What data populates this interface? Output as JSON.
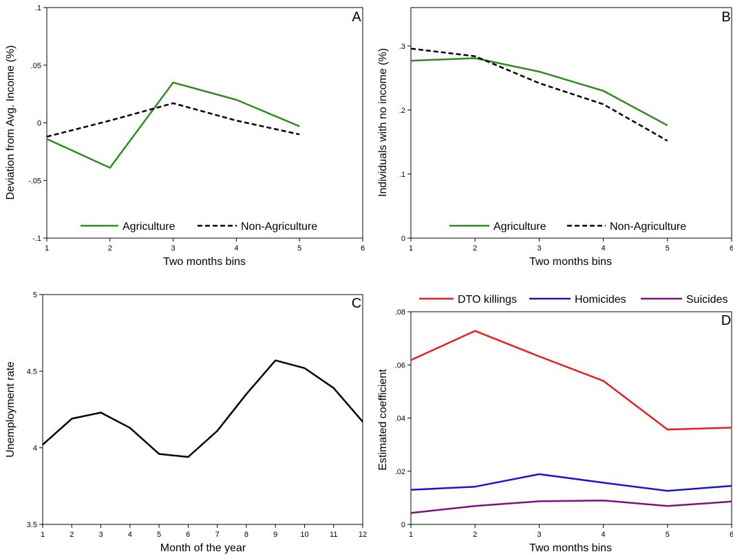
{
  "chart_data": [
    {
      "type": "line",
      "panel_label": "A",
      "xlabel": "Two months bins",
      "ylabel": "Deviation from Avg. Income (%)",
      "xlim": [
        1,
        6
      ],
      "ylim": [
        -0.1,
        0.1
      ],
      "x_ticks": [
        1,
        2,
        3,
        4,
        5,
        6
      ],
      "x_tick_labels": [
        "1",
        "2",
        "3",
        "4",
        "5",
        "6"
      ],
      "y_ticks": [
        -0.1,
        -0.05,
        0,
        0.05,
        0.1
      ],
      "y_tick_labels": [
        "-.1",
        "-.05",
        "0",
        ".05",
        ".1"
      ],
      "legend_position": "bottom-inside",
      "series": [
        {
          "name": "Agriculture",
          "color": "#2e8b22",
          "dash": "solid",
          "x": [
            1,
            2,
            3,
            4,
            5
          ],
          "values": [
            -0.014,
            -0.039,
            0.035,
            0.02,
            -0.003
          ]
        },
        {
          "name": "Non-Agriculture",
          "color": "#000000",
          "dash": "dashed",
          "x": [
            1,
            2,
            3,
            4,
            5
          ],
          "values": [
            -0.012,
            0.002,
            0.017,
            0.002,
            -0.01
          ]
        }
      ]
    },
    {
      "type": "line",
      "panel_label": "B",
      "xlabel": "Two months bins",
      "ylabel": "Individuals with no income (%)",
      "xlim": [
        1,
        6
      ],
      "ylim": [
        0,
        0.36
      ],
      "x_ticks": [
        1,
        2,
        3,
        4,
        5,
        6
      ],
      "x_tick_labels": [
        "1",
        "2",
        "3",
        "4",
        "5",
        "6"
      ],
      "y_ticks": [
        0,
        0.1,
        0.2,
        0.3
      ],
      "y_tick_labels": [
        "0",
        ".1",
        ".2",
        ".3"
      ],
      "legend_position": "bottom-inside",
      "series": [
        {
          "name": "Agriculture",
          "color": "#2e8b22",
          "dash": "solid",
          "x": [
            1,
            2,
            3,
            4,
            5
          ],
          "values": [
            0.277,
            0.281,
            0.26,
            0.23,
            0.176
          ]
        },
        {
          "name": "Non-Agriculture",
          "color": "#000000",
          "dash": "dashed",
          "x": [
            1,
            2,
            3,
            4,
            5
          ],
          "values": [
            0.296,
            0.284,
            0.242,
            0.209,
            0.152
          ]
        }
      ]
    },
    {
      "type": "line",
      "panel_label": "C",
      "xlabel": "Month of the year",
      "ylabel": "Unemployment rate",
      "xlim": [
        1,
        12
      ],
      "ylim": [
        3.5,
        5.0
      ],
      "x_ticks": [
        1,
        2,
        3,
        4,
        5,
        6,
        7,
        8,
        9,
        10,
        11,
        12
      ],
      "x_tick_labels": [
        "1",
        "2",
        "3",
        "4",
        "5",
        "6",
        "7",
        "8",
        "9",
        "10",
        "11",
        "12"
      ],
      "y_ticks": [
        3.5,
        4,
        4.5,
        5
      ],
      "y_tick_labels": [
        "3.5",
        "4",
        "4.5",
        "5"
      ],
      "series": [
        {
          "color": "#000000",
          "dash": "solid",
          "x": [
            1,
            2,
            3,
            4,
            5,
            6,
            7,
            8,
            9,
            10,
            11,
            12
          ],
          "values": [
            4.02,
            4.19,
            4.23,
            4.13,
            3.96,
            3.94,
            4.11,
            4.35,
            4.57,
            4.52,
            4.39,
            4.17
          ]
        }
      ]
    },
    {
      "type": "line",
      "panel_label": "D",
      "xlabel": "Two months bins",
      "ylabel": "Estimated coefficient",
      "xlim": [
        1,
        6
      ],
      "ylim": [
        0,
        0.08
      ],
      "x_ticks": [
        1,
        2,
        3,
        4,
        5,
        6
      ],
      "x_tick_labels": [
        "1",
        "2",
        "3",
        "4",
        "5",
        "6"
      ],
      "y_ticks": [
        0,
        0.02,
        0.04,
        0.06,
        0.08
      ],
      "y_tick_labels": [
        "0",
        ".02",
        ".04",
        ".06",
        ".08"
      ],
      "legend_position": "top-outside",
      "series": [
        {
          "name": "DTO killings",
          "color": "#ee1c1c",
          "dash": "solid",
          "x": [
            1,
            2,
            3,
            4,
            5,
            6
          ],
          "values": [
            0.0618,
            0.0728,
            0.0632,
            0.054,
            0.0357,
            0.0364
          ]
        },
        {
          "name": "Homicides",
          "color": "#1414d6",
          "dash": "solid",
          "x": [
            1,
            2,
            3,
            4,
            5,
            6
          ],
          "values": [
            0.013,
            0.0142,
            0.0189,
            0.0157,
            0.0126,
            0.0145
          ]
        },
        {
          "name": "Suicides",
          "color": "#7d107d",
          "dash": "solid",
          "x": [
            1,
            2,
            3,
            4,
            5,
            6
          ],
          "values": [
            0.0043,
            0.0069,
            0.0087,
            0.009,
            0.0069,
            0.0086
          ]
        }
      ]
    }
  ]
}
